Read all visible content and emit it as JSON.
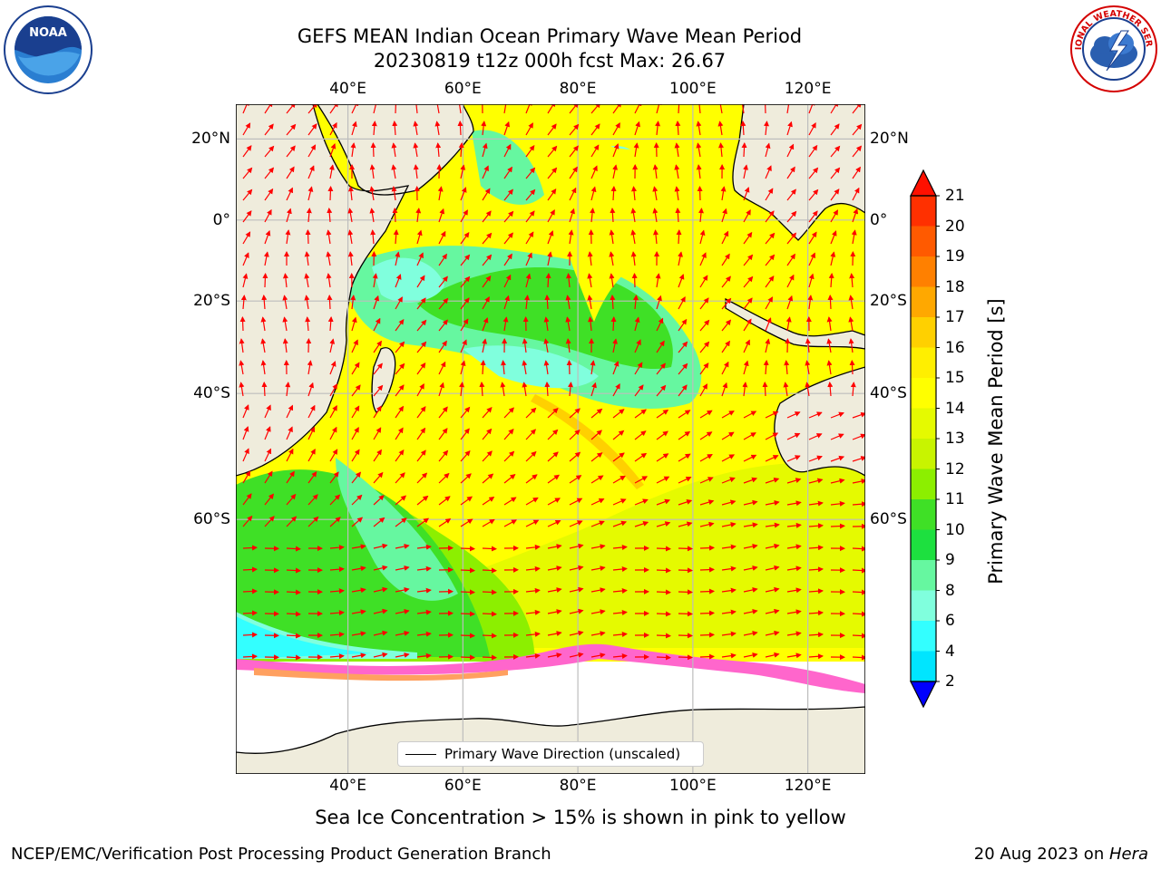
{
  "title": {
    "line1": "GEFS MEAN Indian Ocean Primary Wave Mean Period",
    "line2": "20230819 t12z 000h fcst   Max: 26.67"
  },
  "logos": {
    "left": {
      "name": "noaa-logo",
      "text": "NOAA",
      "ring_text": "NATIONAL OCEANIC AND ATMOSPHERIC ADMINISTRATION · U.S. DEPARTMENT OF COMMERCE"
    },
    "right": {
      "name": "nws-logo",
      "ring_text": "NATIONAL WEATHER SERVICE"
    }
  },
  "map": {
    "lon_ticks": [
      "40°E",
      "60°E",
      "80°E",
      "100°E",
      "120°E"
    ],
    "lat_ticks": [
      "20°N",
      "0°",
      "20°S",
      "40°S",
      "60°S"
    ],
    "lon_values": [
      40,
      60,
      80,
      100,
      120
    ],
    "lat_values": [
      20,
      0,
      -20,
      -40,
      -60
    ],
    "lon_range": [
      20.5,
      130
    ],
    "lat_range": [
      28,
      -87
    ],
    "colors": {
      "land": "#efecdc",
      "ice": "#ffffff",
      "arrow": "#ff0000",
      "grid": "#bdbdbd"
    }
  },
  "colorbar": {
    "title": "Primary Wave Mean Period [s]",
    "levels": [
      "21",
      "20",
      "19",
      "18",
      "17",
      "16",
      "15",
      "14",
      "13",
      "12",
      "11",
      "10",
      "9",
      "8",
      "6",
      "4",
      "2"
    ],
    "colors": [
      "#ff3000",
      "#ff5a00",
      "#ff8000",
      "#ffa800",
      "#ffd000",
      "#ffef00",
      "#ffff00",
      "#e5fa00",
      "#c8f400",
      "#8cef00",
      "#3fe026",
      "#1de03f",
      "#66f7a0",
      "#80ffdd",
      "#33ffff",
      "#00e5ff",
      "#0077ff"
    ],
    "over_color": "#ff1000",
    "under_color": "#0000ff"
  },
  "legend": {
    "label": "Primary Wave Direction (unscaled)"
  },
  "note": "Sea Ice Concentration > 15% is shown in pink to yellow",
  "footer": {
    "left": "NCEP/EMC/Verification Post Processing Product Generation Branch",
    "date": "20 Aug 2023 on ",
    "host": "Hera"
  }
}
